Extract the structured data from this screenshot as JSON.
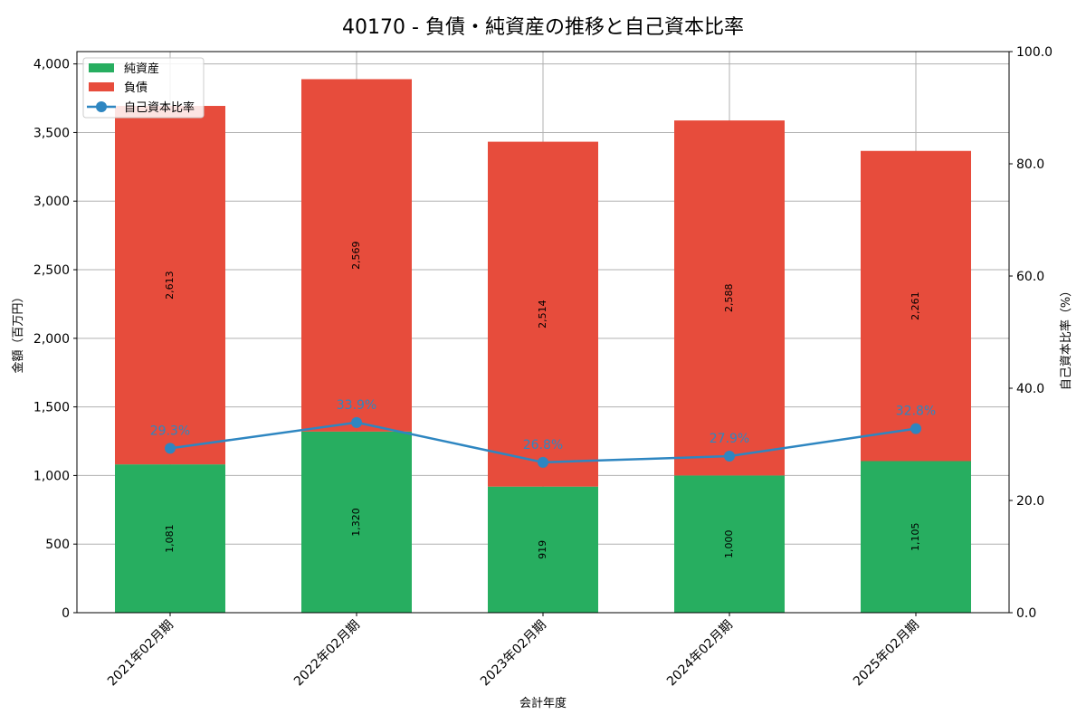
{
  "title": "40170 - 負債・純資産の推移と自己資本比率",
  "xlabel": "会計年度",
  "ylabel_left": "金額（百万円）",
  "ylabel_right": "自己資本比率（%）",
  "legend": [
    "純資産",
    "負債",
    "自己資本比率"
  ],
  "colors": {
    "net_assets": "#27ae60",
    "liabilities": "#e74c3c",
    "ratio": "#2e86c1"
  },
  "chart_data": {
    "type": "bar",
    "stacked": true,
    "title": "40170 - 負債・純資産の推移と自己資本比率",
    "xlabel": "会計年度",
    "ylabel": "金額（百万円）",
    "y2label": "自己資本比率（%）",
    "categories": [
      "2021年02月期",
      "2022年02月期",
      "2023年02月期",
      "2024年02月期",
      "2025年02月期"
    ],
    "series": [
      {
        "name": "純資産",
        "type": "bar",
        "values": [
          1081,
          1320,
          919,
          1000,
          1105
        ],
        "labels": [
          "1,081",
          "1,320",
          "919",
          "1,000",
          "1,105"
        ]
      },
      {
        "name": "負債",
        "type": "bar",
        "values": [
          2613,
          2569,
          2514,
          2588,
          2261
        ],
        "labels": [
          "2,613",
          "2,569",
          "2,514",
          "2,588",
          "2,261"
        ]
      },
      {
        "name": "自己資本比率",
        "type": "line",
        "axis": "right",
        "values": [
          29.3,
          33.9,
          26.8,
          27.9,
          32.8
        ],
        "labels": [
          "29.3%",
          "33.9%",
          "26.8%",
          "27.9%",
          "32.8%"
        ]
      }
    ],
    "ylim": [
      0,
      4090
    ],
    "y2lim": [
      0,
      100
    ],
    "yticks": [
      "0",
      "500",
      "1,000",
      "1,500",
      "2,000",
      "2,500",
      "3,000",
      "3,500",
      "4,000"
    ],
    "y2ticks": [
      "0.0",
      "20.0",
      "40.0",
      "60.0",
      "80.0",
      "100.0"
    ],
    "grid": true,
    "legend_position": "upper left"
  }
}
